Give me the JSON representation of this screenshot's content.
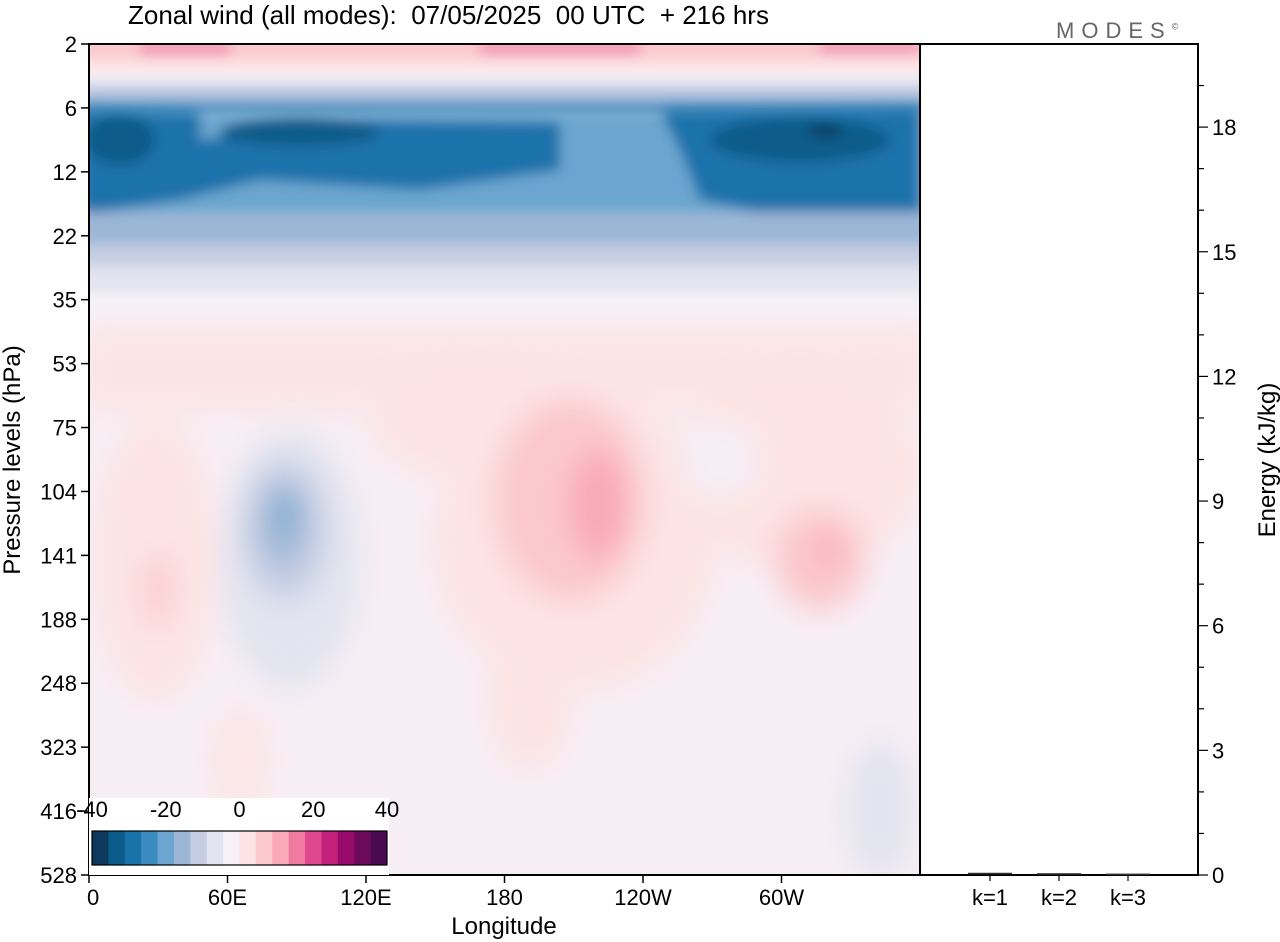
{
  "chart_data": {
    "type": "heatmap",
    "title": "Zonal wind (all modes):  07/05/2025  00 UTC  + 216 hrs",
    "watermark": "MODES",
    "watermark_mark": "©",
    "xlabel": "Longitude",
    "ylabel": "Pressure levels (hPa)",
    "x_ticks": [
      "0",
      "60E",
      "120E",
      "180",
      "120W",
      "60W"
    ],
    "y_ticks": [
      "2",
      "6",
      "12",
      "22",
      "35",
      "53",
      "75",
      "104",
      "141",
      "188",
      "248",
      "323",
      "416",
      "528"
    ],
    "colorbar": {
      "labels": [
        "-40",
        "-20",
        "0",
        "20",
        "40"
      ],
      "range": [
        -40,
        40
      ],
      "colors": [
        "#0d3a5c",
        "#0b5b8a",
        "#1a72ab",
        "#3a8cc0",
        "#6aa6cf",
        "#9cb6d6",
        "#c4cde3",
        "#e3e4f0",
        "#f7f0f6",
        "#fde3e3",
        "#fbc8cc",
        "#f9a9b8",
        "#f07aa0",
        "#e0488e",
        "#c4207c",
        "#980a6a",
        "#6e0a5c",
        "#4a0a52"
      ]
    },
    "zonal_wind_fields": [
      {
        "level": "2",
        "pattern": "weak easterly, positive patches near 30E and 180",
        "approx_value": 10
      },
      {
        "level": "6-12",
        "pattern": "strong easterly jet",
        "approx_value": -30
      },
      {
        "level": "22",
        "pattern": "easterly",
        "approx_value": -15
      },
      {
        "level": "35",
        "pattern": "weak easterly",
        "approx_value": -5
      },
      {
        "level": "53-75",
        "pattern": "weak westerly",
        "approx_value": 5
      },
      {
        "level": "104-188",
        "pattern": "easterly core near 85E; westerly cores near 200E and 290E",
        "approx_value": 10
      },
      {
        "level": "248-528",
        "pattern": "weak mixed winds",
        "approx_value": 2
      }
    ],
    "energy_panel": {
      "ylabel": "Energy (kJ/kg)",
      "y_ticks": [
        "0",
        "3",
        "6",
        "9",
        "12",
        "15",
        "18"
      ],
      "ylim": [
        0,
        20
      ],
      "categories": [
        "k=1",
        "k=2",
        "k=3"
      ],
      "values": [
        0.03,
        0.02,
        0.01
      ]
    }
  }
}
